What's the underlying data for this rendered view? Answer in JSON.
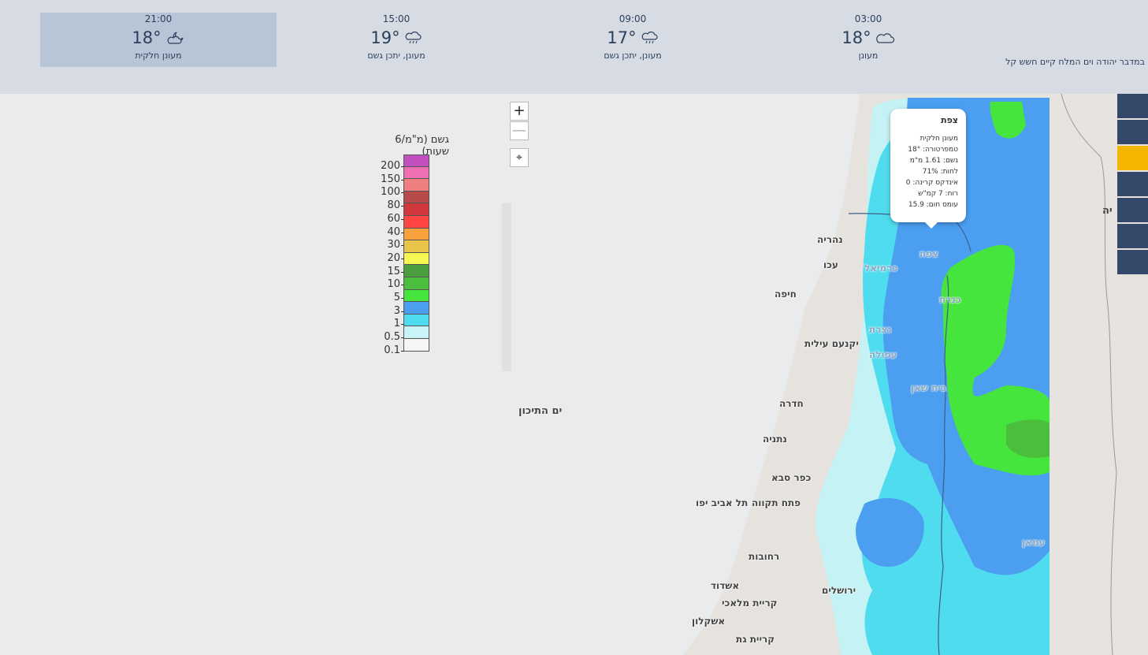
{
  "forecast": [
    {
      "time": "21:00",
      "temp": "18°",
      "icon": "partly-cloudy-night-icon",
      "desc": "מעונן חלקית",
      "active": true
    },
    {
      "time": "15:00",
      "temp": "19°",
      "icon": "cloud-rain-icon",
      "desc": "מעונן, יתכן גשם",
      "active": false
    },
    {
      "time": "09:00",
      "temp": "17°",
      "icon": "cloud-rain-icon",
      "desc": "מעונן, יתכן גשם",
      "active": false
    },
    {
      "time": "03:00",
      "temp": "18°",
      "icon": "cloud-icon",
      "desc": "מעונן",
      "active": false
    }
  ],
  "alert": "במדבר יהודה וים המלח קיים חשש קל",
  "legend": {
    "title": "גשם (מ\"מ/6 שעות)",
    "colors": [
      "#c350c0",
      "#ef6fb3",
      "#ef7f7f",
      "#b94a4a",
      "#d1383e",
      "#ff4444",
      "#f7a03c",
      "#e8c44a",
      "#f7f751",
      "#4c9d40",
      "#4bbe3d",
      "#46e53e",
      "#4b9ef0",
      "#50dcef",
      "#c8f3f7",
      "#f5f5f5"
    ],
    "labels": [
      "200",
      "150",
      "100",
      "80",
      "60",
      "40",
      "30",
      "20",
      "15",
      "10",
      "5",
      "3",
      "1",
      "0.5",
      "0.1"
    ]
  },
  "map": {
    "zoom_in": "+",
    "zoom_out": "—",
    "locate_icon": "crosshair-icon",
    "sea_label": "ים התיכון",
    "right_edge_label": "יה",
    "cities": [
      {
        "name": "נהריה",
        "light": false
      },
      {
        "name": "עכו",
        "light": false
      },
      {
        "name": "כרמיאל",
        "light": true
      },
      {
        "name": "צפת",
        "light": true
      },
      {
        "name": "חיפה",
        "light": false
      },
      {
        "name": "נצרת",
        "light": true
      },
      {
        "name": "כנרת",
        "light": true
      },
      {
        "name": "יקנעם עילית",
        "light": false
      },
      {
        "name": "עפולה",
        "light": true
      },
      {
        "name": "בית שאן",
        "light": true
      },
      {
        "name": "חדרה",
        "light": false
      },
      {
        "name": "נתניה",
        "light": false
      },
      {
        "name": "כפר סבא",
        "light": false
      },
      {
        "name": "פתח תקווה",
        "light": false
      },
      {
        "name": "תל אביב יפו",
        "light": false
      },
      {
        "name": "רחובות",
        "light": false
      },
      {
        "name": "אשדוד",
        "light": false
      },
      {
        "name": "ירושלים",
        "light": false
      },
      {
        "name": "קריית מלאכי",
        "light": false
      },
      {
        "name": "אשקלון",
        "light": false
      },
      {
        "name": "קריית גת",
        "light": false
      },
      {
        "name": "עמאן",
        "light": true
      }
    ],
    "popup": {
      "title": "צפת",
      "lines": [
        "מעונן חלקית",
        "טמפרטורה: 18°",
        "גשם: 1.61 מ\"מ",
        "לחות: 71%",
        "אינדקס קרינה: 0",
        "רוח: 7 קמ\"ש",
        "עומס חום: 15.9"
      ]
    }
  },
  "sidetabs": 7,
  "active_sidetab": 2
}
